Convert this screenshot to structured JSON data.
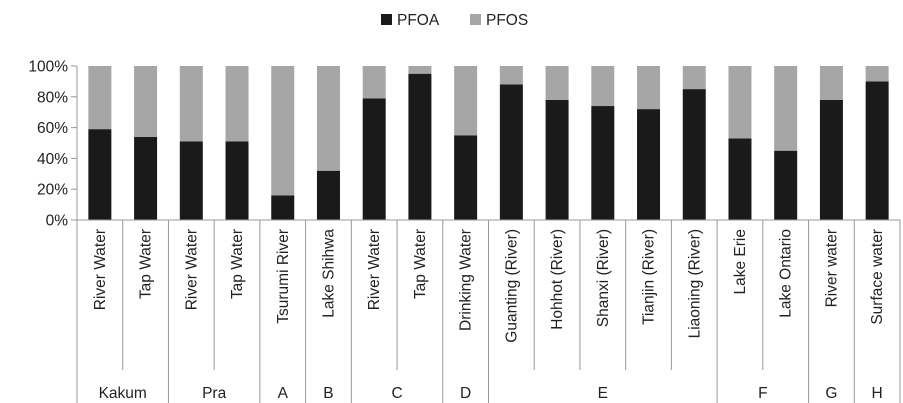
{
  "chart_data": {
    "type": "bar",
    "stacked": true,
    "normalized": true,
    "categories": [
      "River Water",
      "Tap Water",
      "River Water",
      "Tap Water",
      "Tsurumi River",
      "Lake Shihwa",
      "River Water",
      "Tap Water",
      "Drinking Water",
      "Guanting (River)",
      "Hohhot (River)",
      "Shanxi (River)",
      "Tianjin (River)",
      "Liaoning (River)",
      "Lake Erie",
      "Lake Ontario",
      "River water",
      "Surface water"
    ],
    "groups": [
      {
        "label": "Kakum",
        "start": 0,
        "end": 1
      },
      {
        "label": "Pra",
        "start": 2,
        "end": 3
      },
      {
        "label": "A",
        "start": 4,
        "end": 4
      },
      {
        "label": "B",
        "start": 5,
        "end": 5
      },
      {
        "label": "C",
        "start": 6,
        "end": 7
      },
      {
        "label": "D",
        "start": 8,
        "end": 8
      },
      {
        "label": "E",
        "start": 9,
        "end": 13
      },
      {
        "label": "F",
        "start": 14,
        "end": 15
      },
      {
        "label": "G",
        "start": 16,
        "end": 16
      },
      {
        "label": "H",
        "start": 17,
        "end": 17
      }
    ],
    "series": [
      {
        "name": "PFOA",
        "color": "#1a1a1a",
        "values": [
          59,
          54,
          51,
          51,
          16,
          32,
          79,
          95,
          55,
          88,
          78,
          74,
          72,
          85,
          53,
          45,
          78,
          90
        ]
      },
      {
        "name": "PFOS",
        "color": "#a6a6a6",
        "values": [
          41,
          46,
          49,
          49,
          84,
          68,
          21,
          5,
          45,
          12,
          22,
          26,
          28,
          15,
          47,
          55,
          22,
          10
        ]
      }
    ],
    "y_ticks": [
      "0%",
      "20%",
      "40%",
      "60%",
      "80%",
      "100%"
    ],
    "ylim": [
      0,
      100
    ],
    "legend_position": "top-center",
    "grid": false
  }
}
